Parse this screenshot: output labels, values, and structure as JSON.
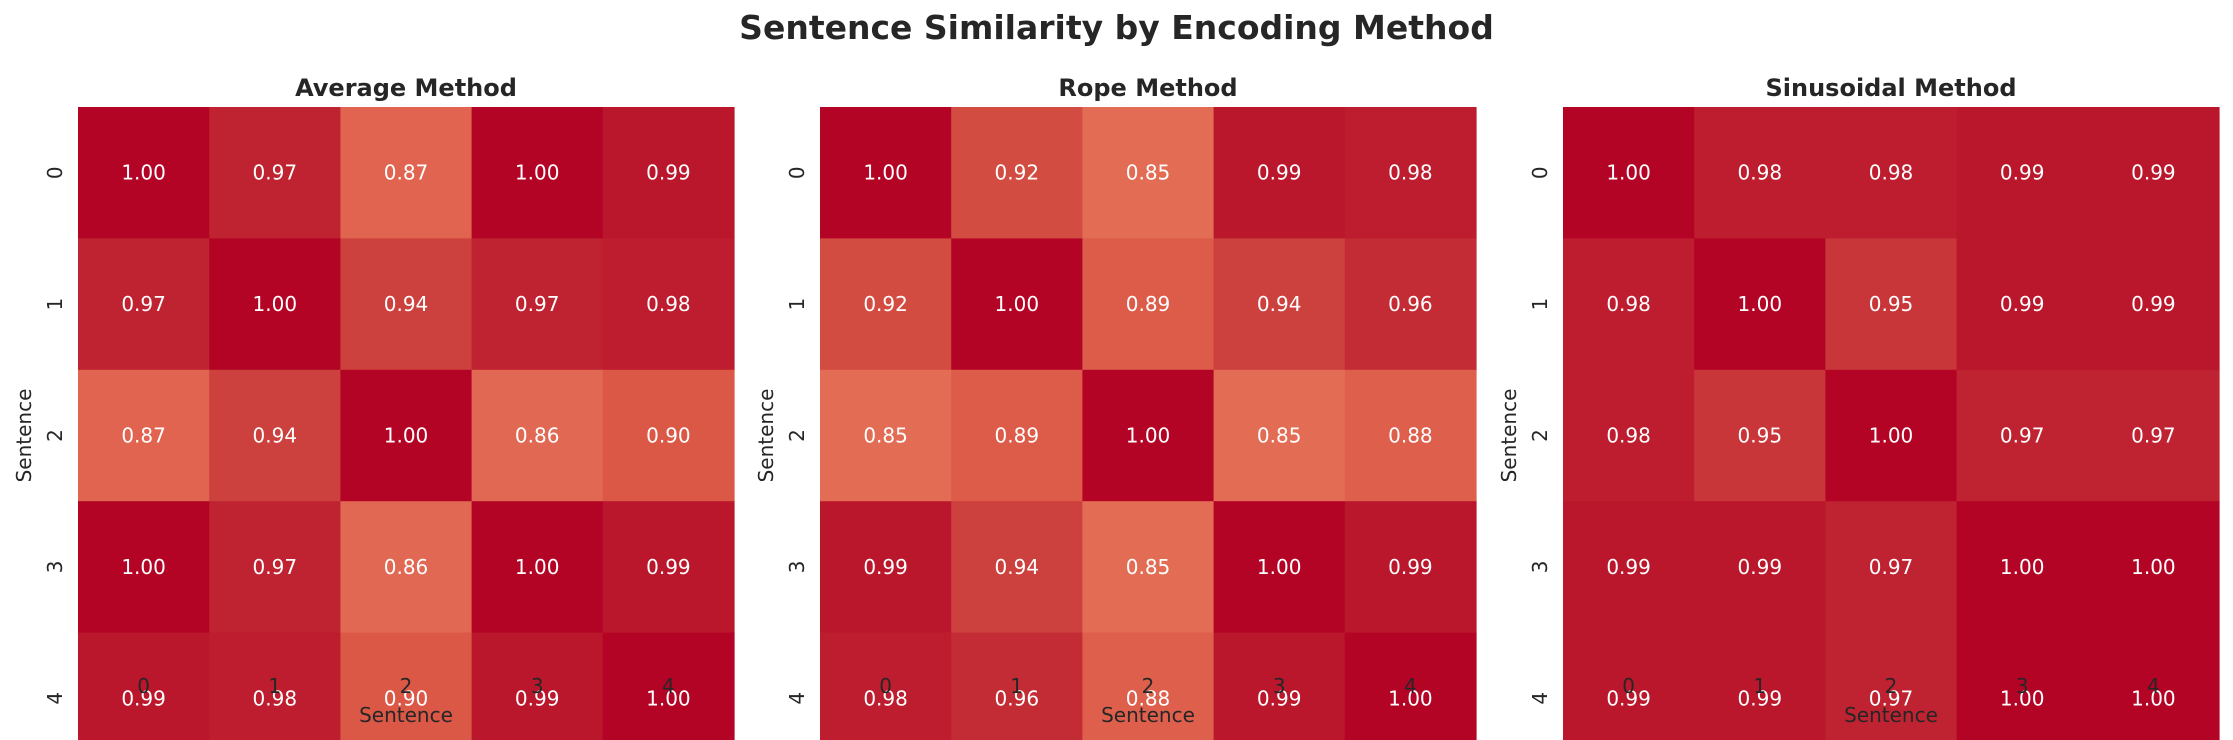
{
  "figure": {
    "title": "Sentence Similarity by Encoding Method"
  },
  "chart_data": [
    {
      "type": "heatmap",
      "title": "Average Method",
      "xlabel": "Sentence",
      "ylabel": "Sentence",
      "x_ticks": [
        "0",
        "1",
        "2",
        "3",
        "4"
      ],
      "y_ticks": [
        "0",
        "1",
        "2",
        "3",
        "4"
      ],
      "values": [
        [
          1.0,
          0.97,
          0.87,
          1.0,
          0.99
        ],
        [
          0.97,
          1.0,
          0.94,
          0.97,
          0.98
        ],
        [
          0.87,
          0.94,
          1.0,
          0.86,
          0.9
        ],
        [
          1.0,
          0.97,
          0.86,
          1.0,
          0.99
        ],
        [
          0.99,
          0.98,
          0.9,
          0.99,
          1.0
        ]
      ],
      "annotation_format": "0.00",
      "colorbar": false,
      "colormap": "coolwarm (red end)"
    },
    {
      "type": "heatmap",
      "title": "Rope Method",
      "xlabel": "Sentence",
      "ylabel": "Sentence",
      "x_ticks": [
        "0",
        "1",
        "2",
        "3",
        "4"
      ],
      "y_ticks": [
        "0",
        "1",
        "2",
        "3",
        "4"
      ],
      "values": [
        [
          1.0,
          0.92,
          0.85,
          0.99,
          0.98
        ],
        [
          0.92,
          1.0,
          0.89,
          0.94,
          0.96
        ],
        [
          0.85,
          0.89,
          1.0,
          0.85,
          0.88
        ],
        [
          0.99,
          0.94,
          0.85,
          1.0,
          0.99
        ],
        [
          0.98,
          0.96,
          0.88,
          0.99,
          1.0
        ]
      ],
      "annotation_format": "0.00",
      "colorbar": false,
      "colormap": "coolwarm (red end)"
    },
    {
      "type": "heatmap",
      "title": "Sinusoidal Method",
      "xlabel": "Sentence",
      "ylabel": "Sentence",
      "x_ticks": [
        "0",
        "1",
        "2",
        "3",
        "4"
      ],
      "y_ticks": [
        "0",
        "1",
        "2",
        "3",
        "4"
      ],
      "values": [
        [
          1.0,
          0.98,
          0.98,
          0.99,
          0.99
        ],
        [
          0.98,
          1.0,
          0.95,
          0.99,
          0.99
        ],
        [
          0.98,
          0.95,
          1.0,
          0.97,
          0.97
        ],
        [
          0.99,
          0.99,
          0.97,
          1.0,
          1.0
        ],
        [
          0.99,
          0.99,
          0.97,
          1.0,
          1.0
        ]
      ],
      "annotation_format": "0.00",
      "colorbar": false,
      "colormap": "coolwarm (red end)"
    }
  ],
  "colors": {
    "high": "#b40426",
    "low": "#e36c55",
    "text": "#262626",
    "annotation": "#ffffff"
  }
}
